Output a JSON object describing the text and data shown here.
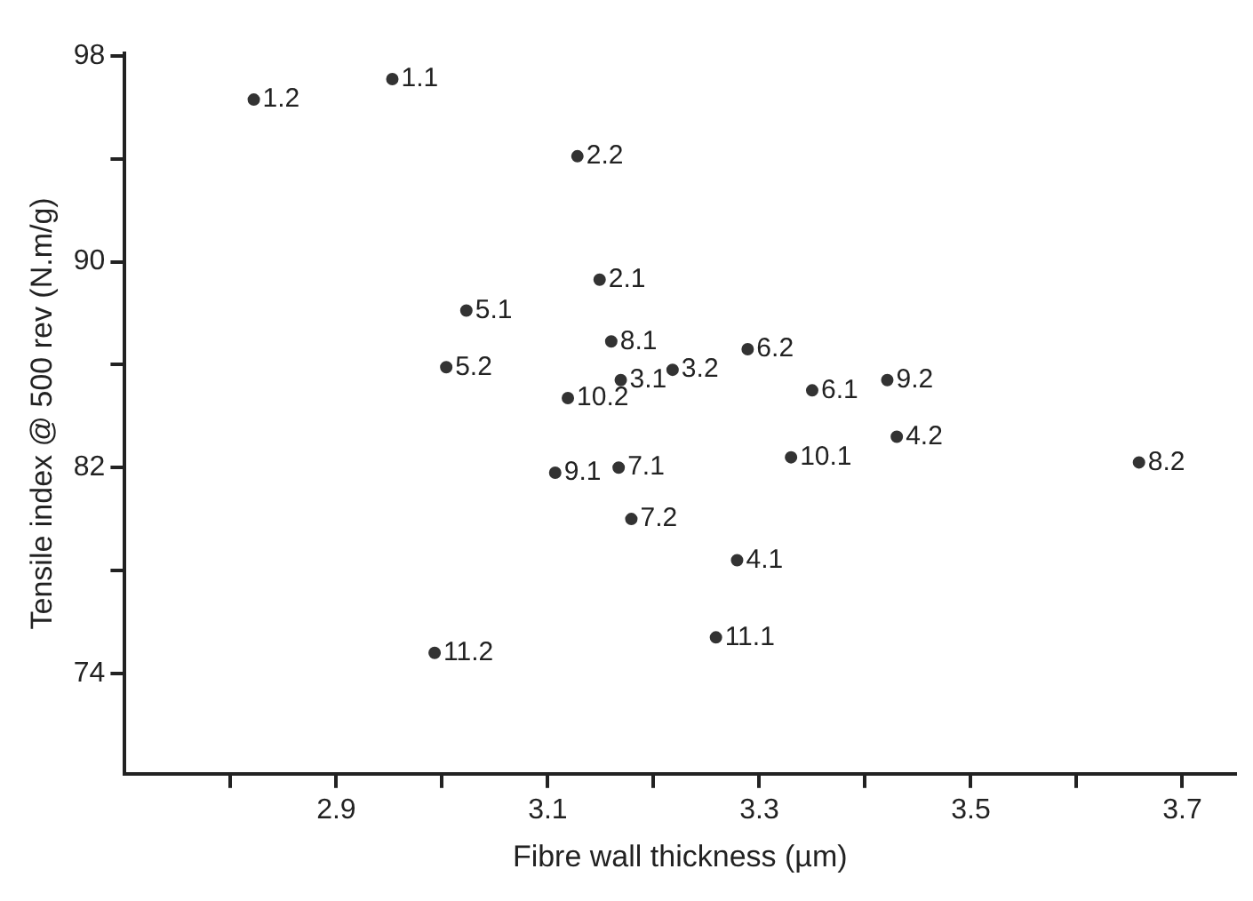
{
  "chart_data": {
    "type": "scatter",
    "xlabel": "Fibre wall thickness (µm)",
    "ylabel": "Tensile index @ 500 rev (N.m/g)",
    "series": [
      {
        "color": "#333333",
        "x": [
          2.822,
          2.953,
          3.128,
          3.149,
          3.023,
          3.16,
          3.004,
          3.169,
          3.119,
          3.218,
          3.289,
          3.35,
          3.421,
          3.43,
          3.33,
          3.659,
          3.167,
          3.179,
          3.279,
          3.107,
          2.993,
          3.259
        ],
        "values": [
          96.3,
          97.1,
          94.1,
          89.3,
          88.1,
          86.9,
          85.9,
          85.4,
          84.7,
          85.8,
          86.6,
          85.0,
          85.4,
          83.2,
          82.4,
          82.2,
          82.0,
          80.0,
          78.4,
          81.8,
          74.8,
          75.4
        ]
      }
    ],
    "annotations": [
      {
        "text": "1.2",
        "x": 2.822,
        "y": 96.3
      },
      {
        "text": "1.1",
        "x": 2.953,
        "y": 97.1
      },
      {
        "text": "2.2",
        "x": 3.128,
        "y": 94.1
      },
      {
        "text": "2.1",
        "x": 3.149,
        "y": 89.3
      },
      {
        "text": "5.1",
        "x": 3.023,
        "y": 88.1
      },
      {
        "text": "8.1",
        "x": 3.16,
        "y": 86.9
      },
      {
        "text": "5.2",
        "x": 3.004,
        "y": 85.9
      },
      {
        "text": "3.1",
        "x": 3.169,
        "y": 85.4
      },
      {
        "text": "10.2",
        "x": 3.119,
        "y": 84.7
      },
      {
        "text": "3.2",
        "x": 3.218,
        "y": 85.8
      },
      {
        "text": "6.2",
        "x": 3.289,
        "y": 86.6
      },
      {
        "text": "6.1",
        "x": 3.35,
        "y": 85.0
      },
      {
        "text": "9.2",
        "x": 3.421,
        "y": 85.4
      },
      {
        "text": "4.2",
        "x": 3.43,
        "y": 83.2
      },
      {
        "text": "10.1",
        "x": 3.33,
        "y": 82.4
      },
      {
        "text": "8.2",
        "x": 3.659,
        "y": 82.2
      },
      {
        "text": "7.1",
        "x": 3.167,
        "y": 82.0
      },
      {
        "text": "7.2",
        "x": 3.179,
        "y": 80.0
      },
      {
        "text": "4.1",
        "x": 3.279,
        "y": 78.4
      },
      {
        "text": "9.1",
        "x": 3.107,
        "y": 81.8
      },
      {
        "text": "11.2",
        "x": 2.993,
        "y": 74.8
      },
      {
        "text": "11.1",
        "x": 3.259,
        "y": 75.4
      }
    ],
    "xlim": [
      2.7,
      3.75
    ],
    "xticks": [
      {
        "value": 2.8,
        "label": null
      },
      2.9,
      {
        "value": 3.0,
        "label": null
      },
      3.1,
      {
        "value": 3.2,
        "label": null
      },
      3.3,
      {
        "value": 3.4,
        "label": null
      },
      3.5,
      {
        "value": 3.6,
        "label": null
      },
      3.7
    ],
    "ylim": [
      70.1,
      98.1
    ],
    "yticks": [
      98,
      {
        "value": 94,
        "label": null
      },
      90,
      {
        "value": 86,
        "label": null
      },
      82,
      {
        "value": 78,
        "label": null
      },
      74
    ],
    "grid": false,
    "legend": false,
    "marker": "circle"
  }
}
